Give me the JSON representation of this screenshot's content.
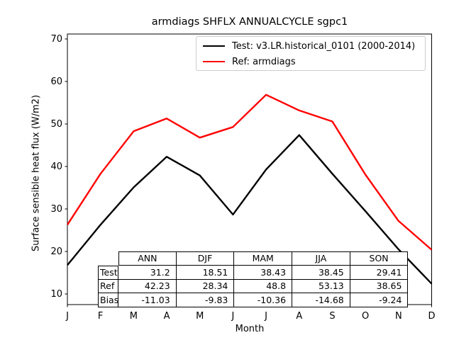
{
  "title": "armdiags SHFLX ANNUALCYCLE sgpc1",
  "legend": {
    "entries": [
      {
        "label": "Test: v3.LR.historical_0101 (2000-2014)",
        "color": "#000000"
      },
      {
        "label": "Ref: armdiags",
        "color": "#ff0000"
      }
    ]
  },
  "chart_data": {
    "type": "line",
    "title": "armdiags SHFLX ANNUALCYCLE sgpc1",
    "xlabel": "Month",
    "ylabel": "Surface sensible heat flux (W/m2)",
    "x_tick_labels": [
      "J",
      "F",
      "M",
      "A",
      "M",
      "J",
      "J",
      "A",
      "S",
      "O",
      "N",
      "D"
    ],
    "y_ticks": [
      10,
      20,
      30,
      40,
      50,
      60,
      70
    ],
    "ylim": [
      7.5,
      71.2
    ],
    "grid": false,
    "legend_position": "upper right inside",
    "series": [
      {
        "name": "Test: v3.LR.historical_0101 (2000-2014)",
        "color": "#000000",
        "values": [
          16.8,
          26.3,
          35.1,
          42.3,
          37.9,
          28.7,
          39.3,
          47.4,
          38.3,
          29.5,
          20.5,
          12.4
        ]
      },
      {
        "name": "Ref: armdiags",
        "color": "#ff0000",
        "values": [
          26.3,
          38.3,
          48.3,
          51.3,
          46.8,
          49.3,
          56.9,
          53.2,
          50.6,
          38.1,
          27.2,
          20.4
        ]
      }
    ]
  },
  "table": {
    "columns": [
      "ANN",
      "DJF",
      "MAM",
      "JJA",
      "SON"
    ],
    "rows": [
      {
        "label": "Test",
        "values": [
          "31.2",
          "18.51",
          "38.43",
          "38.45",
          "29.41"
        ]
      },
      {
        "label": "Ref",
        "values": [
          "42.23",
          "28.34",
          "48.8",
          "53.13",
          "38.65"
        ]
      },
      {
        "label": "Bias",
        "values": [
          "-11.03",
          "-9.83",
          "-10.36",
          "-14.68",
          "-9.24"
        ]
      }
    ]
  },
  "colors": {
    "test_line": "#000000",
    "ref_line": "#ff0000",
    "spine": "#000000",
    "legend_border": "#cccccc"
  }
}
